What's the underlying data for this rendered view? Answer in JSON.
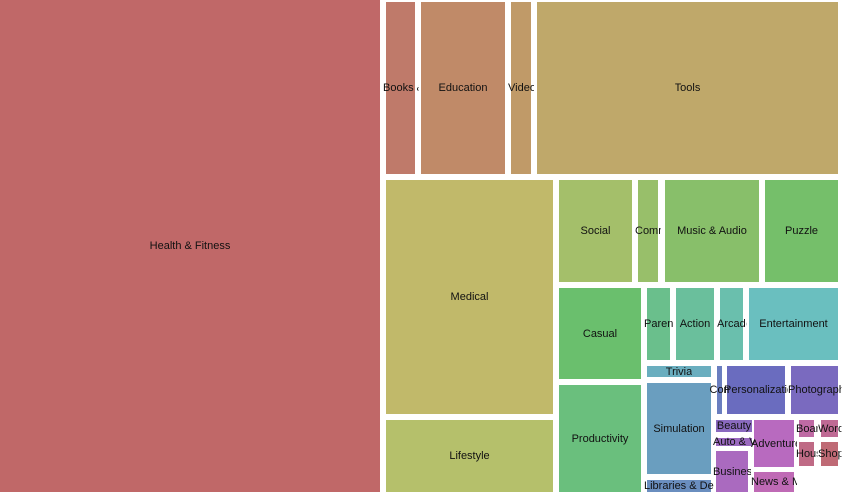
{
  "chart_data": {
    "type": "treemap",
    "title": "",
    "items": [
      {
        "name": "Health & Fitness",
        "value": 1870,
        "color": "#c06868"
      },
      {
        "name": "Books & Reference",
        "value": 50,
        "color": "#bf7a6a"
      },
      {
        "name": "Education",
        "value": 144,
        "color": "#c08a68"
      },
      {
        "name": "Video Players & Editors",
        "value": 34,
        "color": "#c09a68"
      },
      {
        "name": "Tools",
        "value": 518,
        "color": "#bfa86a"
      },
      {
        "name": "Medical",
        "value": 391,
        "color": "#c1b96a"
      },
      {
        "name": "Lifestyle",
        "value": 120,
        "color": "#b5c06b"
      },
      {
        "name": "Social",
        "value": 74,
        "color": "#a4bf6a"
      },
      {
        "name": "Communication",
        "value": 20,
        "color": "#98bf6a"
      },
      {
        "name": "Music & Audio",
        "value": 96,
        "color": "#88bf6a"
      },
      {
        "name": "Puzzle",
        "value": 74,
        "color": "#75bf6a"
      },
      {
        "name": "Casual",
        "value": 75,
        "color": "#6abf6d"
      },
      {
        "name": "Parenting",
        "value": 17,
        "color": "#6abf8c"
      },
      {
        "name": "Action",
        "value": 27,
        "color": "#6abf9c"
      },
      {
        "name": "Arcade",
        "value": 17,
        "color": "#6abfad"
      },
      {
        "name": "Entertainment",
        "value": 64,
        "color": "#6abfbf"
      },
      {
        "name": "Productivity",
        "value": 88,
        "color": "#6abf7d"
      },
      {
        "name": "Trivia",
        "value": 7,
        "color": "#6aaebf"
      },
      {
        "name": "Simulation",
        "value": 58,
        "color": "#6a9ebf"
      },
      {
        "name": "Libraries & Demo",
        "value": 8,
        "color": "#6a8ebf"
      },
      {
        "name": "Comics",
        "value": 2,
        "color": "#6a7ebf"
      },
      {
        "name": "Personalization",
        "value": 28,
        "color": "#6a6cbf"
      },
      {
        "name": "Photography",
        "value": 23,
        "color": "#7a6abf"
      },
      {
        "name": "Beauty",
        "value": 4,
        "color": "#8a6abf"
      },
      {
        "name": "Auto & Vehicles",
        "value": 3,
        "color": "#9a6abf"
      },
      {
        "name": "Business",
        "value": 13,
        "color": "#aa6abf"
      },
      {
        "name": "Adventure",
        "value": 19,
        "color": "#b86abf"
      },
      {
        "name": "News & Magazines",
        "value": 8,
        "color": "#bf6ab5"
      },
      {
        "name": "Board",
        "value": 3,
        "color": "#bf6aa4"
      },
      {
        "name": "Word",
        "value": 3,
        "color": "#bf6a94"
      },
      {
        "name": "House & Home",
        "value": 4,
        "color": "#bf6a85"
      },
      {
        "name": "Shopping",
        "value": 4,
        "color": "#bf6a75"
      }
    ]
  }
}
